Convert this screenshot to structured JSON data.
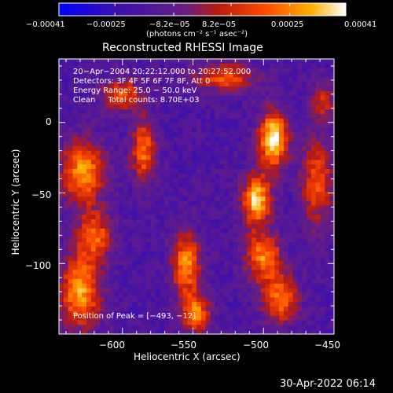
{
  "chart_data": {
    "type": "heatmap",
    "title": "Reconstructed RHESSI Image",
    "xlabel": "Heliocentric X (arcsec)",
    "ylabel": "Heliocentric Y (arcsec)",
    "xlim": [
      -645,
      -450
    ],
    "ylim": [
      -150,
      45
    ],
    "x_ticks": [
      -600,
      -550,
      -500,
      -450
    ],
    "x_tick_labels": [
      "−600",
      "−550",
      "−500",
      "−450"
    ],
    "y_ticks": [
      0,
      -50,
      -100
    ],
    "y_tick_labels": [
      "0",
      "−50",
      "−100"
    ],
    "colorbar": {
      "range": [
        -0.00041,
        0.00041
      ],
      "ticks": [
        -0.00041,
        -0.00025,
        -8.2e-05,
        8.2e-05,
        0.00025,
        0.00041
      ],
      "tick_labels": [
        "−0.00041",
        "−0.00025",
        "−8.2e−05",
        "8.2e−05",
        "0.00025",
        "0.00041"
      ],
      "units_label": "(photons cm⁻² s⁻¹ asec⁻²)",
      "colors": [
        "#0000ff",
        "#3a0fb0",
        "#6b1f80",
        "#b81a12",
        "#ff4a00",
        "#ffb000",
        "#ffffff"
      ]
    },
    "annotations": [
      "20−Apr−2004 20:22:12.000 to 20:27:52.000",
      "Detectors: 3F 4F 5F 6F 7F 8F, Att 0",
      "Energy Range: 25.0 − 50.0 keV",
      "Clean     Total counts: 8.70E+03"
    ],
    "peak_label": "Position of Peak = [−493, −12]",
    "peak": [
      -493,
      -12
    ],
    "grid": false,
    "sources": [
      {
        "x": -493,
        "y": -12,
        "amp": 1.0,
        "sx": 7,
        "sy": 14
      },
      {
        "x": -505,
        "y": -55,
        "amp": 0.9,
        "sx": 7,
        "sy": 12
      },
      {
        "x": -500,
        "y": -95,
        "amp": 0.7,
        "sx": 9,
        "sy": 12
      },
      {
        "x": -488,
        "y": -125,
        "amp": 0.65,
        "sx": 9,
        "sy": 12
      },
      {
        "x": -628,
        "y": -35,
        "amp": 0.75,
        "sx": 11,
        "sy": 16
      },
      {
        "x": -620,
        "y": -80,
        "amp": 0.6,
        "sx": 9,
        "sy": 12
      },
      {
        "x": -630,
        "y": -120,
        "amp": 0.8,
        "sx": 10,
        "sy": 18
      },
      {
        "x": -585,
        "y": -20,
        "amp": 0.65,
        "sx": 6,
        "sy": 16
      },
      {
        "x": -600,
        "y": 20,
        "amp": 0.55,
        "sx": 10,
        "sy": 8
      },
      {
        "x": -555,
        "y": -100,
        "amp": 0.75,
        "sx": 7,
        "sy": 15
      },
      {
        "x": -548,
        "y": -135,
        "amp": 0.7,
        "sx": 7,
        "sy": 10
      },
      {
        "x": -528,
        "y": 32,
        "amp": 0.55,
        "sx": 16,
        "sy": 7
      },
      {
        "x": -462,
        "y": -42,
        "amp": 0.55,
        "sx": 8,
        "sy": 22
      },
      {
        "x": -458,
        "y": 15,
        "amp": 0.4,
        "sx": 6,
        "sy": 10
      }
    ]
  },
  "footer": {
    "timestamp": "30-Apr-2022 06:14"
  }
}
